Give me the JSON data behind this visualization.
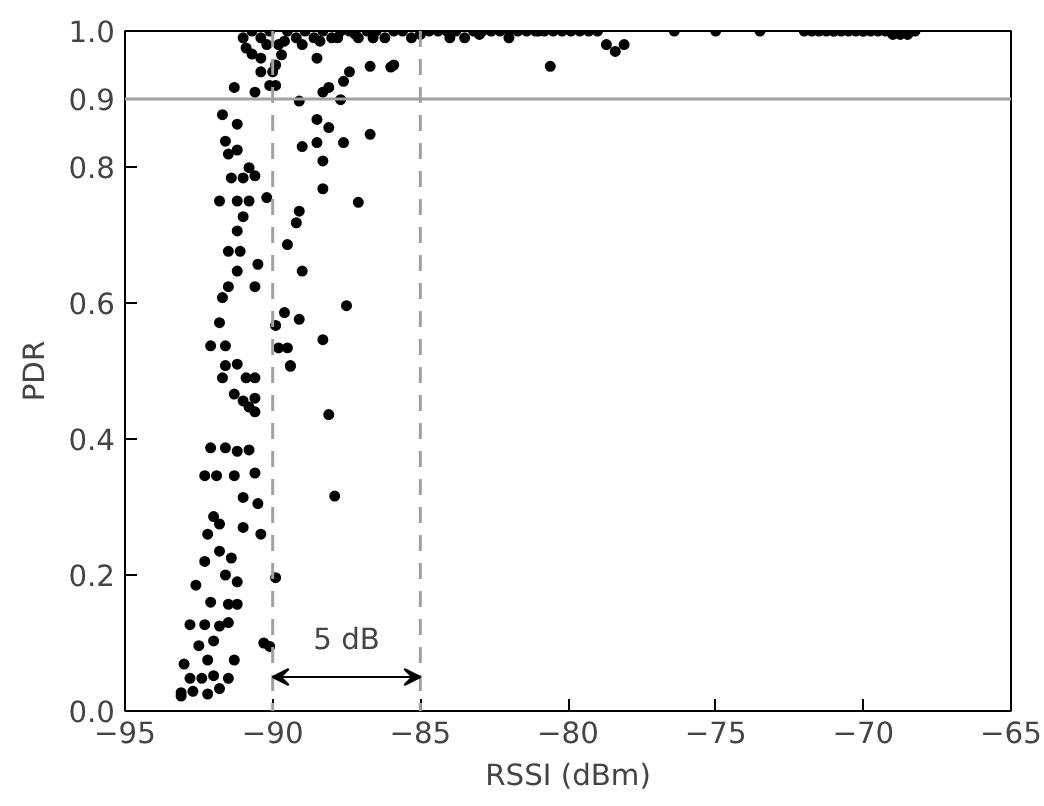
{
  "chart_data": {
    "type": "scatter",
    "xlabel": "RSSI (dBm)",
    "ylabel": "PDR",
    "xlim": [
      -95,
      -65
    ],
    "xticks": [
      {
        "value": -95,
        "label": "−95"
      },
      {
        "value": -90,
        "label": "−90"
      },
      {
        "value": -85,
        "label": "−85"
      },
      {
        "value": -80,
        "label": "−80"
      },
      {
        "value": -75,
        "label": "−75"
      },
      {
        "value": -70,
        "label": "−70"
      },
      {
        "value": -65,
        "label": "−65"
      }
    ],
    "ylim": [
      0,
      1
    ],
    "yticks": [
      {
        "value": 0,
        "label": "0.0"
      },
      0.2,
      0.4,
      0.6,
      0.8,
      {
        "value": 1,
        "label": "1.0"
      }
    ],
    "grid": false,
    "marker": "circle",
    "ref_lines": [
      {
        "axis": "y",
        "value": 0.9,
        "label": "0.9",
        "color": "#a0a0a0",
        "line_style": "solid"
      },
      {
        "axis": "x",
        "value": -90,
        "color": "#a0a0a0",
        "line_style": "dashed"
      },
      {
        "axis": "x",
        "value": -85,
        "color": "#a0a0a0",
        "line_style": "dashed"
      }
    ],
    "annotations": [
      "5 dB"
    ],
    "series": [
      {
        "color": "#000000",
        "x": [
          -80.6,
          -86.0,
          -85.9,
          -86.7,
          -87.4,
          -87.6,
          -88.1,
          -88.3,
          -87.7,
          -89.1,
          -88.5,
          -88.1,
          -86.7,
          -87.6,
          -88.5,
          -89.0,
          -88.3,
          -88.3,
          -87.1,
          -89.1,
          -89.2,
          -89.5,
          -89.0,
          -87.5,
          -89.6,
          -89.1,
          -89.9,
          -88.3,
          -89.5,
          -89.8,
          -89.4,
          -91.7,
          -91.2,
          -91.6,
          -91.5,
          -91.2,
          -90.8,
          -91.4,
          -91.0,
          -90.6,
          -91.8,
          -91.2,
          -90.8,
          -90.2,
          -91.0,
          -91.2,
          -91.5,
          -91.1,
          -91.2,
          -90.5,
          -91.5,
          -90.6,
          -91.7,
          -91.8,
          -92.1,
          -91.6,
          -91.6,
          -91.2,
          -91.7,
          -90.9,
          -90.6,
          -91.3,
          -90.7,
          -90.4,
          -89.9,
          -90.4,
          -90.0,
          -91.3,
          -90.6,
          -90.1,
          -89.9,
          -88.5,
          -89.7,
          -89.4,
          -88.1,
          -87.9,
          -89.9,
          -90.1,
          -90.3,
          -90.6,
          -91.0,
          -90.8,
          -90.6,
          -92.1,
          -91.6,
          -91.2,
          -90.8,
          -92.3,
          -91.9,
          -91.3,
          -90.6,
          -91.0,
          -90.5,
          -92.0,
          -91.8,
          -92.2,
          -91.0,
          -90.4,
          -92.3,
          -91.8,
          -91.4,
          -92.6,
          -91.6,
          -91.2,
          -92.1,
          -91.5,
          -91.2,
          -92.8,
          -92.3,
          -91.8,
          -91.5,
          -92.0,
          -92.5,
          -93.0,
          -92.2,
          -91.3,
          -92.8,
          -92.4,
          -92.0,
          -91.5,
          -92.7,
          -92.2,
          -93.1,
          -93.1,
          -91.8,
          -91.0,
          -90.7,
          -90.4,
          -90.1,
          -89.8,
          -89.5,
          -89.2,
          -88.9,
          -88.6,
          -88.3,
          -88.0,
          -87.7,
          -87.4,
          -87.1,
          -86.8,
          -86.5,
          -86.2,
          -85.9,
          -85.6,
          -85.3,
          -84.7,
          -84.4,
          -84.1,
          -83.8,
          -83.5,
          -83.2,
          -82.9,
          -82.6,
          -82.3,
          -82.0,
          -81.7,
          -81.4,
          -81.1,
          -80.8,
          -80.5,
          -80.2,
          -79.9,
          -79.6,
          -79.3,
          -79.0,
          -78.7,
          -78.4,
          -78.1,
          -90.9,
          -90.2,
          -89.6,
          -89.0,
          -88.4,
          -87.8,
          -87.2,
          -86.6,
          -85.0,
          -84.0,
          -83.0,
          -82.0,
          -81.0,
          -76.4,
          -75.0,
          -73.5,
          -72.0,
          -71.75,
          -71.5,
          -71.25,
          -71.0,
          -70.75,
          -70.5,
          -70.25,
          -70.0,
          -69.75,
          -69.5,
          -69.25,
          -69.0,
          -68.75,
          -68.5,
          -68.25,
          -71.0,
          -70.0
        ],
        "values": [
          0.948,
          0.947,
          0.95,
          0.948,
          0.94,
          0.926,
          0.917,
          0.91,
          0.899,
          0.897,
          0.87,
          0.858,
          0.848,
          0.836,
          0.836,
          0.83,
          0.809,
          0.768,
          0.748,
          0.735,
          0.718,
          0.686,
          0.647,
          0.596,
          0.586,
          0.576,
          0.567,
          0.546,
          0.534,
          0.534,
          0.508,
          0.877,
          0.863,
          0.838,
          0.819,
          0.825,
          0.799,
          0.784,
          0.784,
          0.787,
          0.75,
          0.75,
          0.75,
          0.755,
          0.727,
          0.706,
          0.676,
          0.676,
          0.647,
          0.657,
          0.624,
          0.624,
          0.608,
          0.571,
          0.537,
          0.537,
          0.508,
          0.51,
          0.49,
          0.49,
          0.49,
          0.466,
          0.966,
          0.96,
          0.95,
          0.94,
          0.94,
          0.917,
          0.91,
          0.92,
          0.92,
          0.96,
          0.965,
          0.507,
          0.436,
          0.316,
          0.196,
          0.095,
          0.1,
          0.46,
          0.456,
          0.447,
          0.44,
          0.387,
          0.387,
          0.382,
          0.384,
          0.346,
          0.346,
          0.346,
          0.35,
          0.314,
          0.305,
          0.286,
          0.275,
          0.26,
          0.27,
          0.26,
          0.22,
          0.235,
          0.225,
          0.185,
          0.2,
          0.19,
          0.16,
          0.157,
          0.157,
          0.127,
          0.127,
          0.125,
          0.13,
          0.103,
          0.096,
          0.069,
          0.075,
          0.075,
          0.048,
          0.048,
          0.052,
          0.048,
          0.029,
          0.025,
          0.022,
          0.027,
          0.033,
          0.99,
          1.0,
          0.99,
          1.0,
          0.98,
          1.0,
          0.99,
          1.0,
          0.99,
          1.0,
          0.99,
          1.0,
          1.0,
          0.99,
          1.0,
          1.0,
          0.99,
          1.0,
          1.0,
          0.99,
          1.0,
          1.0,
          1.0,
          1.0,
          0.99,
          1.0,
          1.0,
          1.0,
          1.0,
          0.99,
          1.0,
          1.0,
          1.0,
          1.0,
          1.0,
          1.0,
          1.0,
          1.0,
          1.0,
          1.0,
          0.98,
          0.97,
          0.98,
          0.975,
          0.98,
          0.985,
          0.98,
          0.985,
          0.99,
          0.995,
          0.99,
          0.995,
          0.99,
          0.995,
          1.0,
          1.0,
          1.0,
          1.0,
          1.0,
          1.0,
          1.0,
          1.0,
          1.0,
          1.0,
          1.0,
          1.0,
          1.0,
          1.0,
          1.0,
          1.0,
          1.0,
          0.995,
          0.995,
          0.995,
          1.0,
          1.0,
          1.0
        ]
      }
    ]
  }
}
